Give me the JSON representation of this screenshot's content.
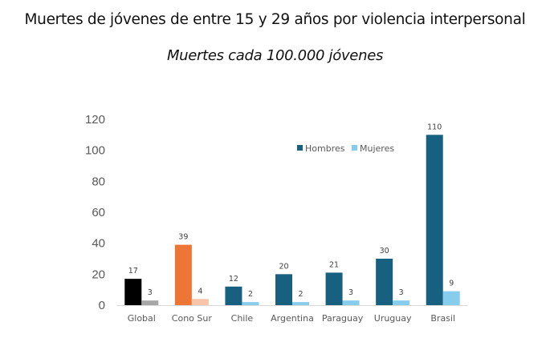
{
  "chart_data": {
    "type": "bar",
    "title": "Muertes de jóvenes de entre 15 y 29 años por violencia interpersonal",
    "subtitle": "Muertes cada 100.000 jóvenes",
    "xlabel": "",
    "ylabel": "",
    "ylim": [
      0,
      120
    ],
    "yticks": [
      0,
      20,
      40,
      60,
      80,
      100,
      120
    ],
    "grid": false,
    "legend_position": "top-right",
    "categories": [
      "Global",
      "Cono Sur",
      "Chile",
      "Argentina",
      "Paraguay",
      "Uruguay",
      "Brasil"
    ],
    "series": [
      {
        "name": "Hombres",
        "color": "#17607F",
        "values": [
          17,
          39,
          12,
          20,
          21,
          30,
          110
        ],
        "point_colors": [
          "#000000",
          "#ED7535",
          "#17607F",
          "#17607F",
          "#17607F",
          "#17607F",
          "#17607F"
        ]
      },
      {
        "name": "Mujeres",
        "color": "#86CCEC",
        "values": [
          3,
          4,
          2,
          2,
          3,
          3,
          9
        ],
        "point_colors": [
          "#A6A6A6",
          "#F8C5A8",
          "#86CCEC",
          "#86CCEC",
          "#86CCEC",
          "#86CCEC",
          "#86CCEC"
        ]
      }
    ]
  }
}
